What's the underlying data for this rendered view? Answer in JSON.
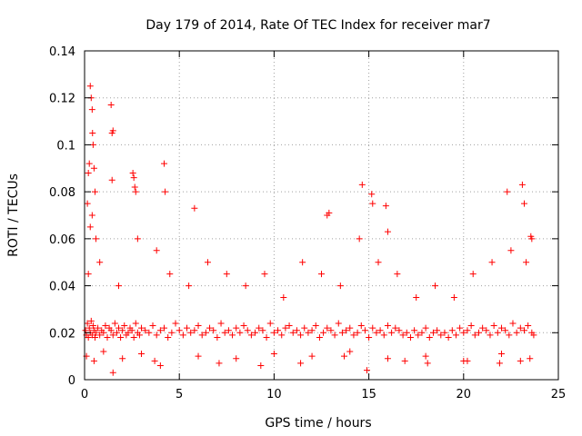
{
  "chart_data": {
    "type": "scatter",
    "title": "Day 179 of 2014, Rate Of TEC Index for receiver mar7",
    "xlabel": "GPS time / hours",
    "ylabel": "ROTI / TECUs",
    "xlim": [
      0,
      25
    ],
    "ylim": [
      0,
      0.14
    ],
    "xticks": [
      0,
      5,
      10,
      15,
      20,
      25
    ],
    "xtick_labels": [
      "0",
      "5",
      "10",
      "15",
      "20",
      "25"
    ],
    "yticks": [
      0,
      0.02,
      0.04,
      0.06,
      0.08,
      0.1,
      0.12,
      0.14
    ],
    "ytick_labels": [
      "0",
      "0.02",
      "0.04",
      "0.06",
      "0.08",
      "0.1",
      "0.12",
      "0.14"
    ],
    "grid": true,
    "marker": "plus",
    "color": "#ff0000",
    "series": [
      {
        "name": "ROTI",
        "x": [
          0.05,
          0.1,
          0.15,
          0.2,
          0.25,
          0.3,
          0.35,
          0.4,
          0.45,
          0.5,
          0.55,
          0.6,
          0.7,
          0.8,
          0.9,
          1.0,
          1.1,
          1.2,
          1.3,
          1.4,
          1.5,
          1.6,
          1.7,
          1.8,
          1.9,
          2.0,
          2.1,
          2.2,
          2.3,
          2.4,
          2.5,
          2.6,
          2.7,
          2.8,
          2.9,
          3.0,
          3.2,
          3.4,
          3.6,
          3.8,
          4.0,
          4.2,
          4.4,
          4.6,
          4.8,
          5.0,
          5.2,
          5.4,
          5.6,
          5.8,
          6.0,
          6.2,
          6.4,
          6.6,
          6.8,
          7.0,
          7.2,
          7.4,
          7.6,
          7.8,
          8.0,
          8.2,
          8.4,
          8.6,
          8.8,
          9.0,
          9.2,
          9.4,
          9.6,
          9.8,
          10.0,
          10.2,
          10.4,
          10.6,
          10.8,
          11.0,
          11.2,
          11.4,
          11.6,
          11.8,
          12.0,
          12.2,
          12.4,
          12.6,
          12.8,
          13.0,
          13.2,
          13.4,
          13.6,
          13.8,
          14.0,
          14.2,
          14.4,
          14.6,
          14.8,
          15.0,
          15.2,
          15.4,
          15.6,
          15.8,
          16.0,
          16.2,
          16.4,
          16.6,
          16.8,
          17.0,
          17.2,
          17.4,
          17.6,
          17.8,
          18.0,
          18.2,
          18.4,
          18.6,
          18.8,
          19.0,
          19.2,
          19.4,
          19.6,
          19.8,
          20.0,
          20.2,
          20.4,
          20.6,
          20.8,
          21.0,
          21.2,
          21.4,
          21.6,
          21.8,
          22.0,
          22.2,
          22.4,
          22.6,
          22.8,
          23.0,
          23.2,
          23.4,
          23.6,
          23.7,
          0.3,
          0.35,
          0.4,
          0.42,
          0.45,
          0.5,
          0.25,
          0.2,
          0.15,
          0.3,
          0.4,
          0.55,
          0.6,
          1.4,
          1.45,
          1.5,
          1.45,
          2.55,
          2.6,
          2.7,
          2.65,
          4.2,
          4.25,
          5.8,
          12.8,
          12.9,
          14.65,
          15.15,
          15.2,
          15.9,
          16.0,
          22.3,
          23.1,
          23.2,
          23.55,
          23.6,
          0.1,
          0.5,
          1.0,
          2.0,
          3.0,
          4.0,
          6.0,
          8.0,
          10.0,
          12.0,
          14.0,
          16.0,
          18.0,
          20.0,
          22.0,
          23.5,
          0.2,
          0.8,
          1.8,
          2.8,
          3.8,
          4.5,
          5.5,
          6.5,
          7.5,
          8.5,
          9.5,
          10.5,
          11.5,
          12.5,
          13.5,
          14.5,
          15.5,
          16.5,
          17.5,
          18.5,
          19.5,
          20.5,
          21.5,
          22.5,
          23.3,
          1.5,
          3.7,
          7.1,
          9.3,
          11.4,
          13.7,
          14.9,
          16.9,
          18.1,
          20.2,
          21.9,
          23.0
        ],
        "y": [
          0.021,
          0.019,
          0.024,
          0.018,
          0.022,
          0.02,
          0.025,
          0.019,
          0.023,
          0.021,
          0.018,
          0.02,
          0.022,
          0.019,
          0.021,
          0.02,
          0.023,
          0.018,
          0.022,
          0.021,
          0.019,
          0.024,
          0.02,
          0.022,
          0.018,
          0.021,
          0.023,
          0.019,
          0.02,
          0.022,
          0.021,
          0.018,
          0.024,
          0.02,
          0.019,
          0.022,
          0.021,
          0.02,
          0.023,
          0.019,
          0.021,
          0.022,
          0.018,
          0.02,
          0.024,
          0.021,
          0.019,
          0.022,
          0.02,
          0.021,
          0.023,
          0.019,
          0.02,
          0.022,
          0.021,
          0.018,
          0.024,
          0.02,
          0.021,
          0.019,
          0.022,
          0.02,
          0.023,
          0.021,
          0.019,
          0.02,
          0.022,
          0.021,
          0.018,
          0.024,
          0.02,
          0.021,
          0.019,
          0.022,
          0.023,
          0.02,
          0.021,
          0.019,
          0.022,
          0.02,
          0.021,
          0.023,
          0.018,
          0.02,
          0.022,
          0.021,
          0.019,
          0.024,
          0.02,
          0.021,
          0.022,
          0.019,
          0.02,
          0.023,
          0.021,
          0.018,
          0.022,
          0.02,
          0.021,
          0.019,
          0.023,
          0.02,
          0.022,
          0.021,
          0.019,
          0.02,
          0.018,
          0.021,
          0.019,
          0.02,
          0.022,
          0.018,
          0.02,
          0.021,
          0.019,
          0.02,
          0.018,
          0.021,
          0.019,
          0.022,
          0.02,
          0.021,
          0.023,
          0.019,
          0.02,
          0.022,
          0.021,
          0.019,
          0.023,
          0.02,
          0.022,
          0.021,
          0.019,
          0.024,
          0.02,
          0.022,
          0.021,
          0.023,
          0.02,
          0.019,
          0.125,
          0.12,
          0.115,
          0.105,
          0.1,
          0.09,
          0.092,
          0.088,
          0.075,
          0.065,
          0.07,
          0.08,
          0.06,
          0.117,
          0.105,
          0.106,
          0.085,
          0.088,
          0.086,
          0.08,
          0.082,
          0.092,
          0.08,
          0.073,
          0.07,
          0.071,
          0.083,
          0.079,
          0.075,
          0.074,
          0.063,
          0.08,
          0.083,
          0.075,
          0.061,
          0.06,
          0.01,
          0.008,
          0.012,
          0.009,
          0.011,
          0.006,
          0.01,
          0.009,
          0.011,
          0.01,
          0.012,
          0.009,
          0.01,
          0.008,
          0.011,
          0.009,
          0.045,
          0.05,
          0.04,
          0.06,
          0.055,
          0.045,
          0.04,
          0.05,
          0.045,
          0.04,
          0.045,
          0.035,
          0.05,
          0.045,
          0.04,
          0.06,
          0.05,
          0.045,
          0.035,
          0.04,
          0.035,
          0.045,
          0.05,
          0.055,
          0.05,
          0.003,
          0.008,
          0.007,
          0.006,
          0.007,
          0.01,
          0.004,
          0.008,
          0.007,
          0.008,
          0.007,
          0.008
        ]
      }
    ]
  }
}
